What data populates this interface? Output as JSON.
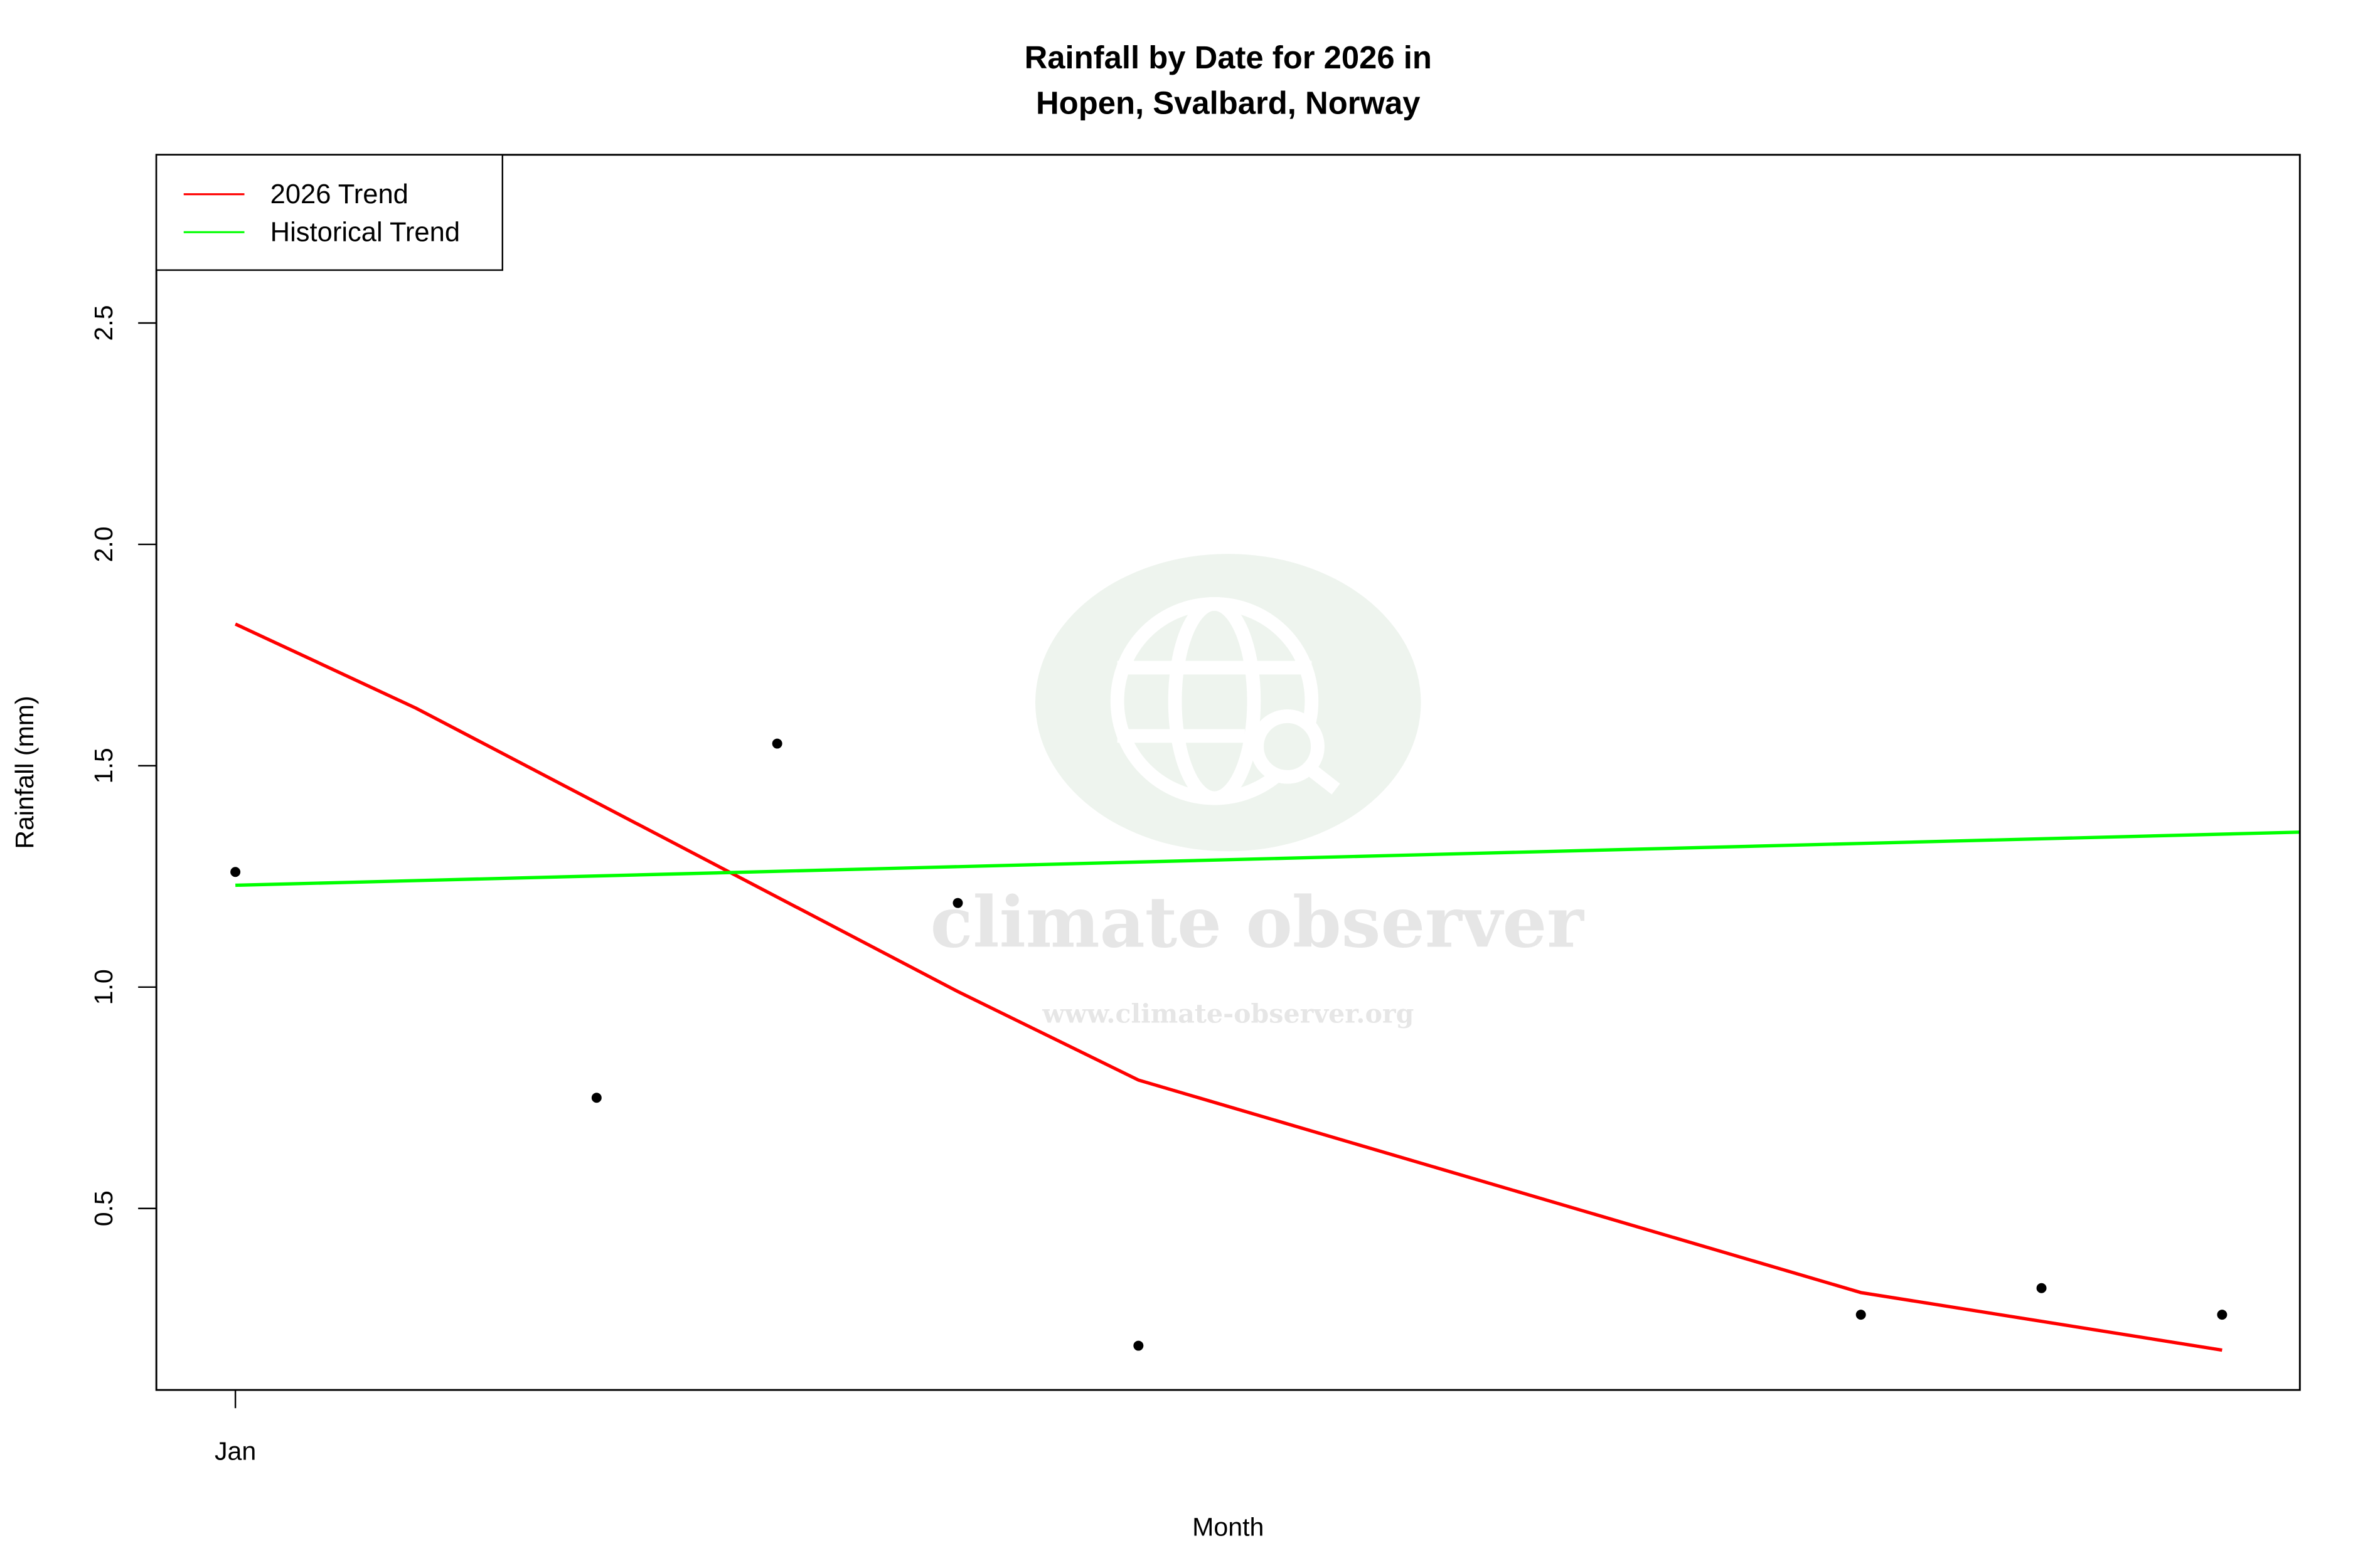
{
  "chart_data": {
    "type": "scatter",
    "title": "Rainfall by Date for 2026 in",
    "subtitle": "Hopen, Svalbard, Norway",
    "xlabel": "Month",
    "ylabel": "Rainfall (mm)",
    "x_ticks": [
      {
        "date": "2026-01-01",
        "label": "Jan"
      }
    ],
    "y_ticks": [
      0.5,
      1.0,
      1.5,
      2.0,
      2.5
    ],
    "xlim": [
      "2025-12-31T13:30",
      "2026-01-12T10:20"
    ],
    "ylim": [
      0.09,
      2.88
    ],
    "grid": false,
    "legend_placement": "top-left",
    "points": {
      "color": "#000000",
      "x": [
        "2026-01-01",
        "2026-01-03",
        "2026-01-04",
        "2026-01-05",
        "2026-01-06",
        "2026-01-10",
        "2026-01-11",
        "2026-01-12"
      ],
      "y": [
        1.26,
        0.75,
        1.55,
        1.19,
        0.19,
        0.26,
        0.32,
        0.26
      ]
    },
    "series": [
      {
        "name": "2026 Trend",
        "color": "#ff0000",
        "x": [
          "2026-01-01",
          "2026-01-02",
          "2026-01-05",
          "2026-01-06",
          "2026-01-10",
          "2026-01-12"
        ],
        "y": [
          1.82,
          1.63,
          0.99,
          0.79,
          0.31,
          0.18
        ]
      },
      {
        "name": "Historical Trend",
        "color": "#00ff00",
        "x": [
          "2026-01-01",
          "2026-01-12T10:20"
        ],
        "y": [
          1.23,
          1.35
        ]
      }
    ]
  },
  "watermark": {
    "name": "climate observer",
    "url": "www.climate-observer.org",
    "icon": "globe-search-icon"
  }
}
